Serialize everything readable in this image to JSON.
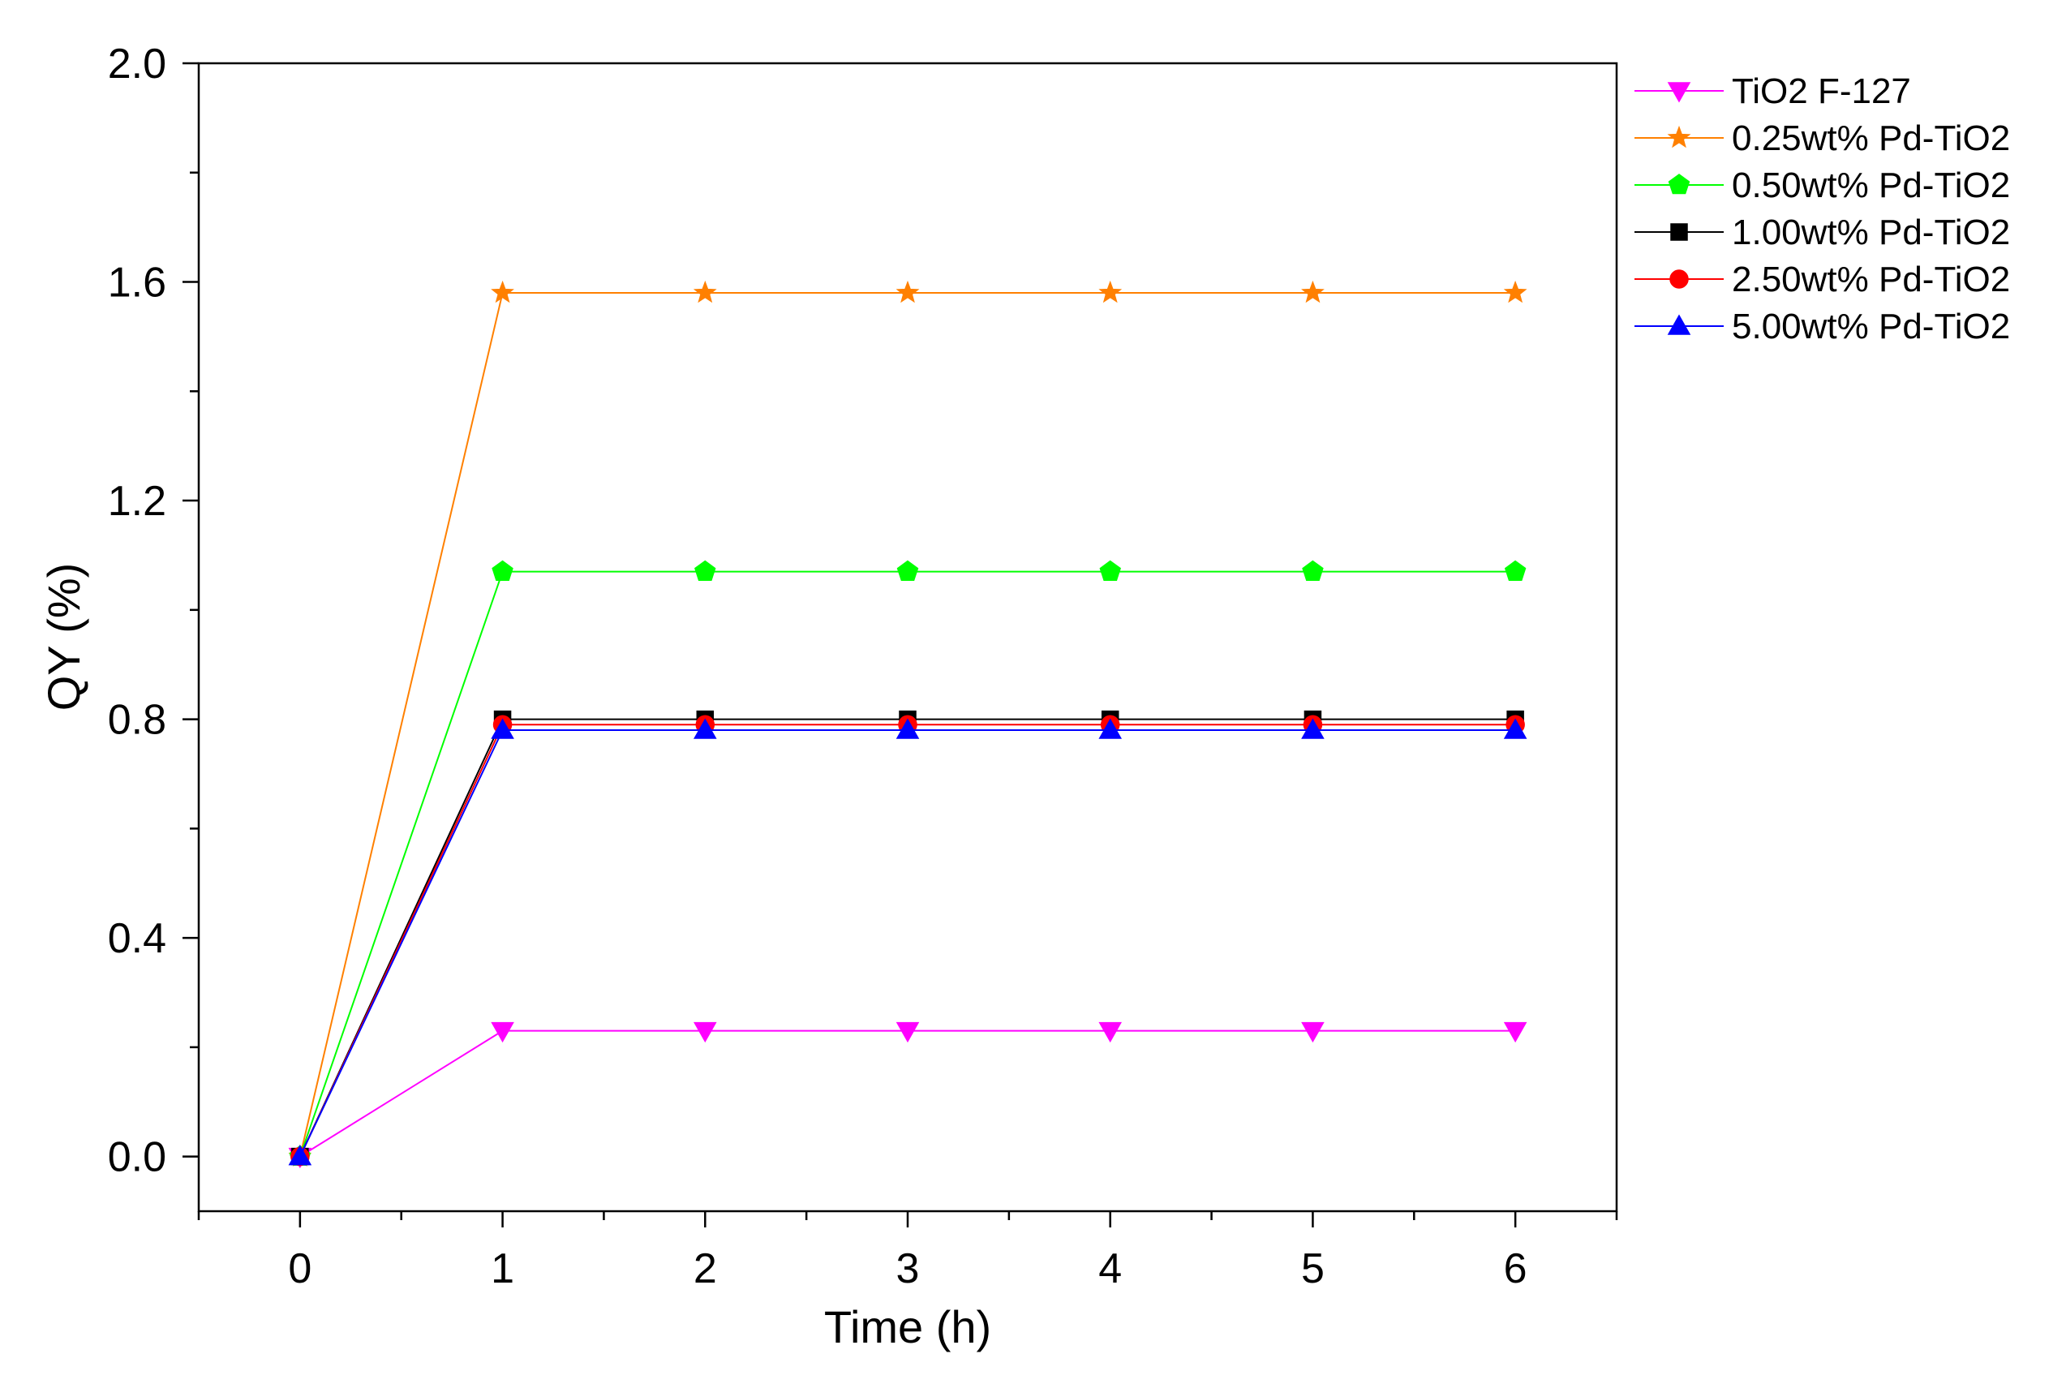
{
  "chart_data": {
    "type": "line",
    "title": "",
    "xlabel": "Time (h)",
    "ylabel": "QY (%)",
    "x": [
      0,
      1,
      2,
      3,
      4,
      5,
      6
    ],
    "x_tick_labels": [
      "0",
      "1",
      "2",
      "3",
      "4",
      "5",
      "6"
    ],
    "y_tick_labels": [
      "0.0",
      "0.4",
      "0.8",
      "1.2",
      "1.6",
      "2.0"
    ],
    "xlim": [
      -0.5,
      6.5
    ],
    "ylim": [
      -0.1,
      2.0
    ],
    "grid": false,
    "legend_position": "outside-top-right",
    "series": [
      {
        "name": "TiO2 F-127",
        "color": "#ff00ff",
        "marker": "triangle-down",
        "values": [
          0,
          0.23,
          0.23,
          0.23,
          0.23,
          0.23,
          0.23
        ]
      },
      {
        "name": "0.25wt% Pd-TiO2",
        "color": "#ff8000",
        "marker": "star",
        "values": [
          0,
          1.58,
          1.58,
          1.58,
          1.58,
          1.58,
          1.58
        ]
      },
      {
        "name": "0.50wt% Pd-TiO2",
        "color": "#00ff00",
        "marker": "pentagon",
        "values": [
          0,
          1.07,
          1.07,
          1.07,
          1.07,
          1.07,
          1.07
        ]
      },
      {
        "name": "1.00wt% Pd-TiO2",
        "color": "#000000",
        "marker": "square",
        "values": [
          0,
          0.8,
          0.8,
          0.8,
          0.8,
          0.8,
          0.8
        ]
      },
      {
        "name": "2.50wt% Pd-TiO2",
        "color": "#ff0000",
        "marker": "circle",
        "values": [
          0,
          0.79,
          0.79,
          0.79,
          0.79,
          0.79,
          0.79
        ]
      },
      {
        "name": "5.00wt% Pd-TiO2",
        "color": "#0000ff",
        "marker": "triangle-up",
        "values": [
          0,
          0.78,
          0.78,
          0.78,
          0.78,
          0.78,
          0.78
        ]
      }
    ]
  }
}
